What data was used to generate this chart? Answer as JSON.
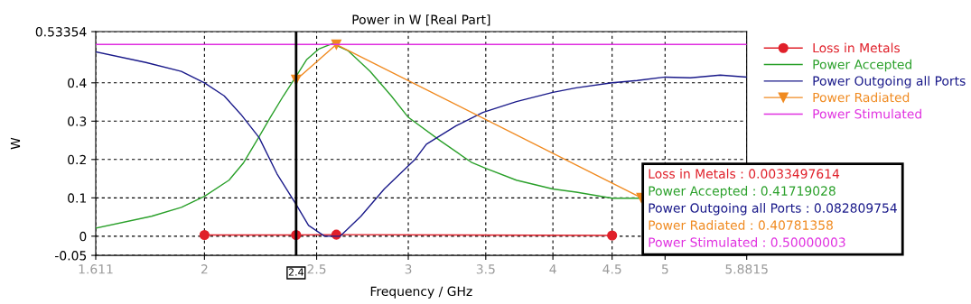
{
  "chart_data": {
    "type": "line",
    "title": "Power in W [Real Part]",
    "xlabel": "Frequency / GHz",
    "ylabel": "W",
    "log": "x",
    "xlim": [
      1.611,
      5.8815
    ],
    "ylim": [
      -0.05,
      0.53354
    ],
    "xticks": [
      1.611,
      2,
      2.5,
      3,
      3.5,
      4,
      4.5,
      5,
      5.8815
    ],
    "yticks": [
      -0.05,
      0,
      0.1,
      0.2,
      0.3,
      0.4,
      0.53354
    ],
    "grid": true,
    "legend": "top right",
    "ref_lines": [
      {
        "axis": "x",
        "value": 2.4,
        "label": "2.4",
        "color": "#000000"
      }
    ],
    "series": [
      {
        "name": "Loss in Metals",
        "color": "#e0202a",
        "marker": "circle",
        "x": [
          2,
          2.4,
          2.6,
          4.5
        ],
        "values": [
          0.003,
          0.003,
          0.004,
          0.002
        ]
      },
      {
        "name": "Power Accepted",
        "color": "#2aa02a",
        "marker": "none",
        "x": [
          1.611,
          1.8,
          1.91,
          2.0,
          2.1,
          2.16,
          2.23,
          2.28,
          2.34,
          2.4,
          2.45,
          2.51,
          2.58,
          2.66,
          2.78,
          2.9,
          3.0,
          3.2,
          3.4,
          3.5,
          3.72,
          4.0,
          4.19,
          4.5,
          4.77
        ],
        "values": [
          0.021,
          0.052,
          0.075,
          0.104,
          0.146,
          0.19,
          0.26,
          0.31,
          0.366,
          0.417,
          0.46,
          0.488,
          0.502,
          0.484,
          0.43,
          0.366,
          0.31,
          0.248,
          0.193,
          0.177,
          0.146,
          0.123,
          0.115,
          0.099,
          0.099
        ]
      },
      {
        "name": "Power Outgoing all Ports",
        "color": "#1a1a8a",
        "marker": "none",
        "x": [
          1.611,
          1.78,
          1.91,
          2.0,
          2.08,
          2.15,
          2.23,
          2.31,
          2.4,
          2.46,
          2.54,
          2.62,
          2.73,
          2.86,
          3.04,
          3.11,
          3.3,
          3.48,
          3.72,
          4.0,
          4.19,
          4.5,
          4.73,
          5.0,
          5.26,
          5.58,
          5.8815
        ],
        "values": [
          0.481,
          0.453,
          0.43,
          0.4,
          0.366,
          0.318,
          0.257,
          0.163,
          0.083,
          0.028,
          0.0,
          0.0,
          0.052,
          0.123,
          0.2,
          0.24,
          0.288,
          0.323,
          0.351,
          0.375,
          0.387,
          0.4,
          0.406,
          0.415,
          0.413,
          0.42,
          0.415
        ]
      },
      {
        "name": "Power Radiated",
        "color": "#f08a20",
        "marker": "triangle",
        "x": [
          2.4,
          2.6,
          4.77
        ],
        "values": [
          0.408,
          0.5,
          0.1
        ]
      },
      {
        "name": "Power Stimulated",
        "color": "#e030e0",
        "marker": "none",
        "x": [
          1.611,
          5.8815
        ],
        "values": [
          0.5,
          0.5
        ]
      }
    ],
    "annotations": [
      "Loss in Metals : 0.0033497614",
      "Power Accepted : 0.41719028",
      "Power Outgoing all Ports : 0.082809754",
      "Power Radiated : 0.40781358",
      "Power Stimulated : 0.50000003"
    ]
  }
}
